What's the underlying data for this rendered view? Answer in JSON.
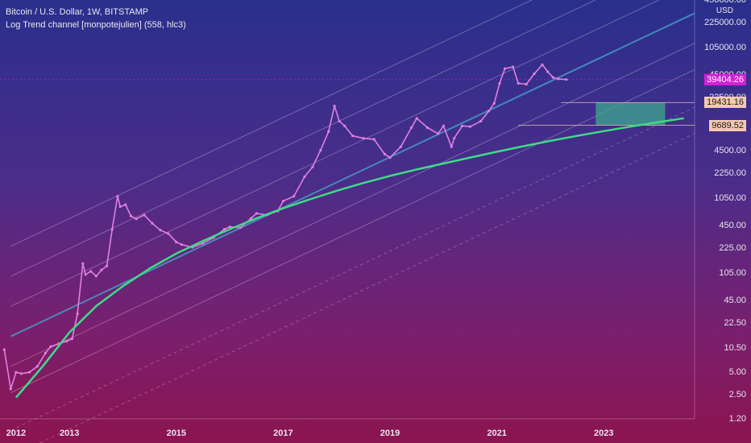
{
  "header": {
    "symbol_line": "Bitcoin / U.S. Dollar, 1W, BITSTAMP",
    "indicator_line": "Log Trend channel [monpotejulien] (558, hlc3)"
  },
  "chart_data": {
    "type": "line",
    "title": "Bitcoin / U.S. Dollar, 1W, BITSTAMP",
    "y_scale": "log",
    "y_unit": "USD",
    "ylim": [
      1.2,
      450000
    ],
    "xlim": [
      2011.7,
      2024.7
    ],
    "x_tick_labels": [
      "2012",
      "2013",
      "2015",
      "2017",
      "2019",
      "2021",
      "2023"
    ],
    "x_ticks": [
      2012,
      2013,
      2015,
      2017,
      2019,
      2021,
      2023
    ],
    "y_tick_labels": [
      "450000.00",
      "225000.00",
      "105000.00",
      "45000.00",
      "22500.00",
      "9000.00",
      "4500.00",
      "2250.00",
      "1050.00",
      "450.00",
      "225.00",
      "105.00",
      "45.00",
      "22.50",
      "10.50",
      "5.00",
      "2.50",
      "1.20"
    ],
    "y_ticks": [
      450000,
      225000,
      105000,
      45000,
      22500,
      9000,
      4500,
      2250,
      1050,
      450,
      225,
      105,
      45,
      22.5,
      10.5,
      5,
      2.5,
      1.2
    ],
    "price_labels": [
      {
        "value": 39404.26,
        "text": "39404.26",
        "color": "#d61fd6"
      },
      {
        "value": 19431.16,
        "text": "19431.16",
        "color": "#f3c9b0"
      },
      {
        "value": 9689.52,
        "text": "9689.52",
        "color": "#f3c9b0"
      }
    ],
    "series": [
      {
        "name": "Bitcoin / U.S. Dollar",
        "color": "#e080e0",
        "x": [
          2011.78,
          2011.9,
          2012.0,
          2012.1,
          2012.25,
          2012.4,
          2012.55,
          2012.65,
          2012.8,
          2012.95,
          2013.05,
          2013.15,
          2013.25,
          2013.3,
          2013.4,
          2013.5,
          2013.6,
          2013.7,
          2013.8,
          2013.9,
          2013.95,
          2014.05,
          2014.15,
          2014.25,
          2014.4,
          2014.55,
          2014.7,
          2014.85,
          2015.0,
          2015.1,
          2015.3,
          2015.5,
          2015.7,
          2015.9,
          2016.0,
          2016.2,
          2016.4,
          2016.5,
          2016.7,
          2016.9,
          2017.0,
          2017.2,
          2017.4,
          2017.55,
          2017.7,
          2017.85,
          2017.96,
          2018.05,
          2018.15,
          2018.3,
          2018.5,
          2018.7,
          2018.9,
          2019.0,
          2019.2,
          2019.4,
          2019.5,
          2019.7,
          2019.9,
          2020.0,
          2020.15,
          2020.2,
          2020.35,
          2020.5,
          2020.7,
          2020.85,
          2020.95,
          2021.05,
          2021.15,
          2021.3,
          2021.4,
          2021.55,
          2021.7,
          2021.85,
          2021.95,
          2022.05,
          2022.15,
          2022.3
        ],
        "y": [
          10,
          3,
          5,
          4.8,
          5,
          6,
          9,
          11,
          12,
          13,
          14,
          30,
          140,
          100,
          110,
          95,
          115,
          130,
          400,
          1100,
          800,
          850,
          600,
          550,
          620,
          480,
          390,
          350,
          270,
          250,
          230,
          260,
          310,
          400,
          430,
          420,
          560,
          650,
          620,
          700,
          950,
          1100,
          2000,
          2700,
          4500,
          8000,
          17500,
          11000,
          9500,
          7000,
          6500,
          6300,
          4000,
          3600,
          5000,
          9000,
          12000,
          9000,
          7500,
          9500,
          5000,
          6500,
          9500,
          9300,
          11000,
          15000,
          19000,
          35000,
          55000,
          58000,
          35000,
          34000,
          47000,
          62000,
          50000,
          42000,
          40000,
          39404
        ]
      },
      {
        "name": "Log Trend channel [monpotejulien]",
        "color": "#3ddc84",
        "x": [
          2012.0,
          2012.5,
          2013.0,
          2013.5,
          2014.0,
          2014.5,
          2015.0,
          2015.5,
          2016.0,
          2016.5,
          2017.0,
          2017.5,
          2018.0,
          2018.5,
          2019.0,
          2019.5,
          2020.0,
          2020.5,
          2021.0,
          2021.5,
          2022.0,
          2022.5,
          2023.0,
          2023.5,
          2024.0,
          2024.5
        ],
        "y": [
          2.3,
          6,
          17,
          38,
          70,
          120,
          190,
          280,
          400,
          560,
          760,
          1000,
          1300,
          1650,
          2050,
          2500,
          3000,
          3600,
          4300,
          5100,
          6000,
          7000,
          8100,
          9300,
          10600,
          12000
        ]
      }
    ],
    "zone": {
      "x_start": 2022.85,
      "x_end": 2024.15,
      "y_low": 9689.52,
      "y_high": 19431.16,
      "color": "#3ea88e"
    }
  }
}
